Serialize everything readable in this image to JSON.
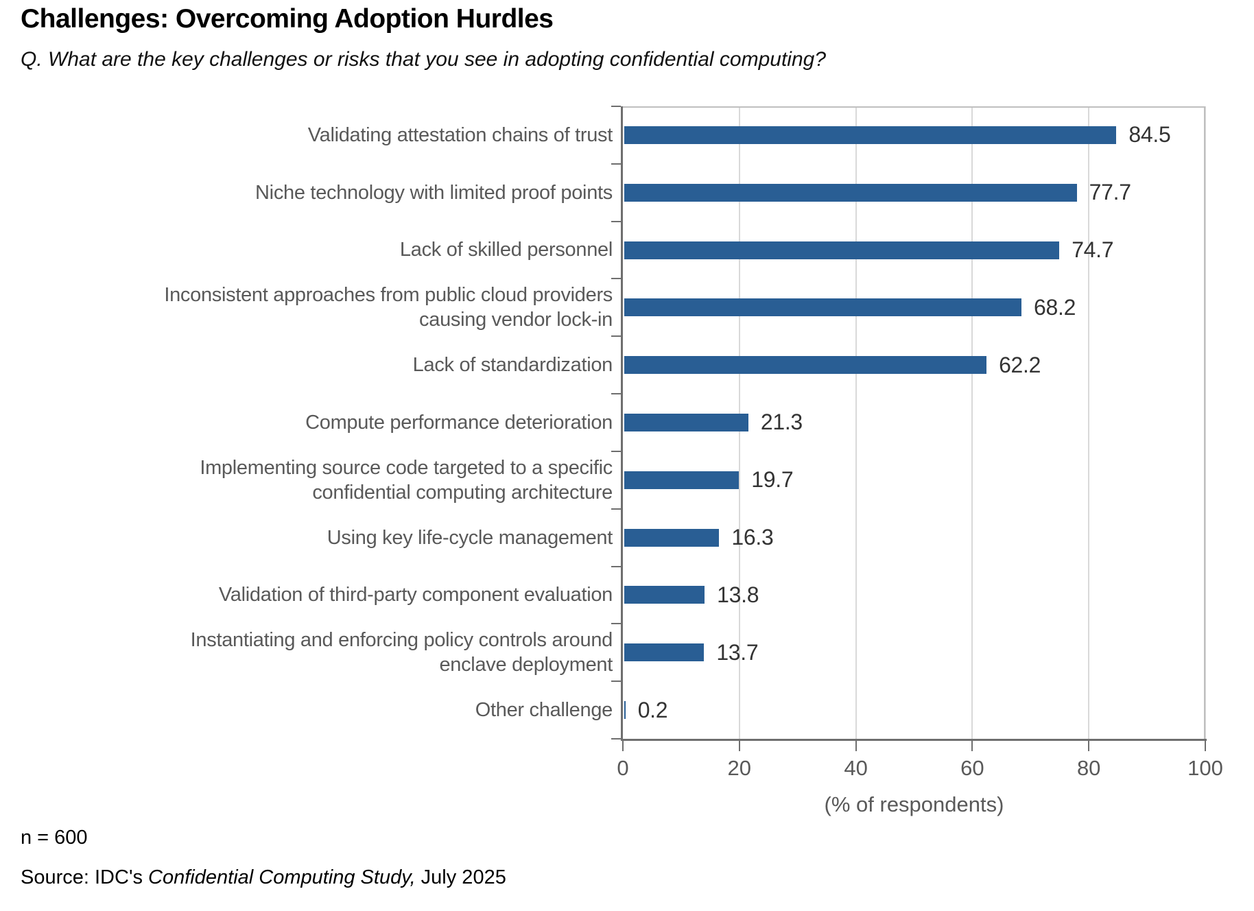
{
  "header": {
    "title": "Challenges: Overcoming Adoption Hurdles",
    "question": "Q. What are the key challenges or risks that you see in adopting confidential computing?"
  },
  "chart_data": {
    "type": "bar",
    "orientation": "horizontal",
    "categories": [
      "Validating attestation chains of trust",
      "Niche technology with limited proof points",
      "Lack of skilled personnel",
      "Inconsistent approaches from public cloud providers\ncausing vendor lock-in",
      "Lack of standardization",
      "Compute performance deterioration",
      "Implementing source code targeted to a specific\nconfidential computing architecture",
      "Using key life-cycle management",
      "Validation of third-party component evaluation",
      "Instantiating and enforcing policy controls around\nenclave deployment",
      "Other challenge"
    ],
    "values": [
      84.5,
      77.7,
      74.7,
      68.2,
      62.2,
      21.3,
      19.7,
      16.3,
      13.8,
      13.7,
      0.2
    ],
    "xlabel": "(% of respondents)",
    "x_ticks": [
      0,
      20,
      40,
      60,
      80,
      100
    ],
    "xlim": [
      0,
      100
    ],
    "grid": "vertical-gridlines-on",
    "legend": "none",
    "bar_color": "#295E94",
    "category_label_color": "#595959",
    "value_label_color": "#333333",
    "axis_color": "#6e6e6e",
    "gridline_color": "#d9d9d9"
  },
  "footer": {
    "sample_size": "n = 600",
    "source_prefix": "Source: IDC's ",
    "source_study": "Confidential Computing Study,",
    "source_suffix": " July 2025"
  }
}
